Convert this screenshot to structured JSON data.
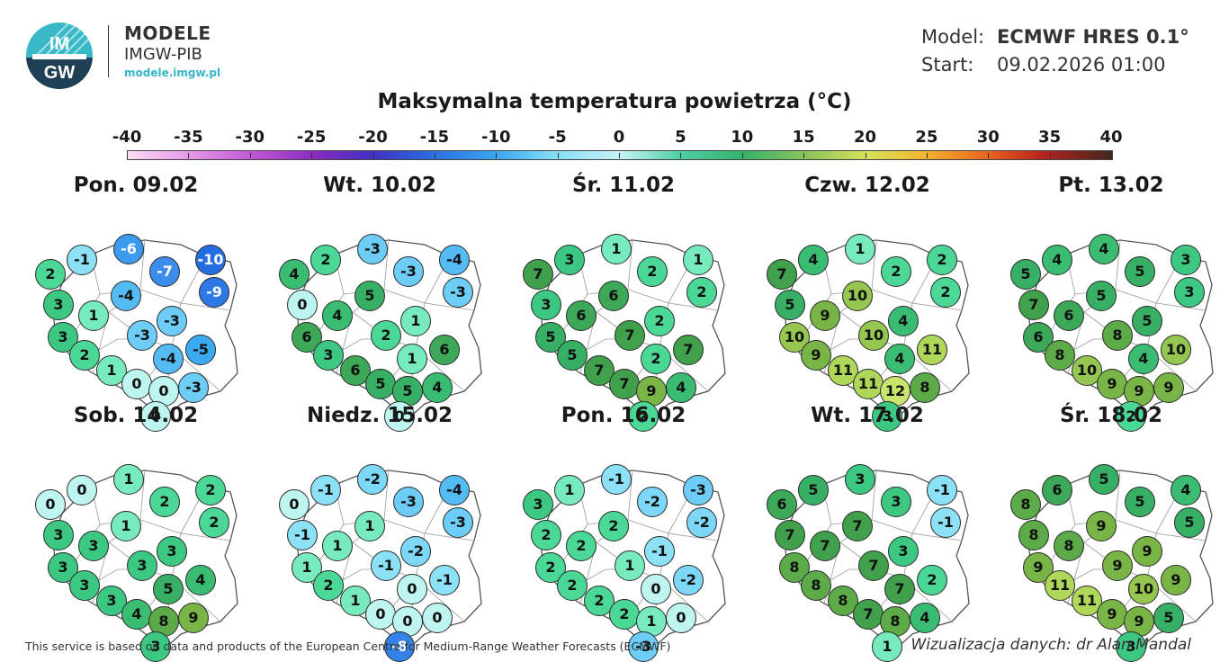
{
  "logo": {
    "mark_text": "IMGW",
    "line1": "MODELE",
    "line2": "IMGW-PIB",
    "url": "modele.imgw.pl"
  },
  "model": {
    "model_label": "Model:",
    "model_value": "ECMWF HRES 0.1°",
    "start_label": "Start:",
    "start_value": "09.02.2026 01:00"
  },
  "title": "Maksymalna temperatura powietrza (°C)",
  "scale": {
    "labels": [
      "-40",
      "-35",
      "-30",
      "-25",
      "-20",
      "-15",
      "-10",
      "-5",
      "0",
      "5",
      "10",
      "15",
      "20",
      "25",
      "30",
      "35",
      "40"
    ],
    "min": -40,
    "max": 40
  },
  "days": [
    {
      "title": "Pon. 09.02",
      "values": [
        -1,
        -6,
        -10,
        2,
        -7,
        -9,
        3,
        -4,
        1,
        -3,
        3,
        -3,
        -5,
        2,
        -4,
        1,
        0,
        0,
        -3,
        0
      ]
    },
    {
      "title": "Wt. 10.02",
      "values": [
        2,
        -3,
        -4,
        4,
        -3,
        -3,
        0,
        5,
        4,
        1,
        6,
        2,
        6,
        3,
        1,
        6,
        5,
        5,
        4,
        0
      ]
    },
    {
      "title": "Śr. 11.02",
      "values": [
        3,
        1,
        1,
        7,
        2,
        2,
        3,
        6,
        6,
        2,
        5,
        7,
        7,
        5,
        2,
        7,
        7,
        9,
        4,
        2
      ]
    },
    {
      "title": "Czw. 12.02",
      "values": [
        4,
        1,
        2,
        7,
        2,
        2,
        5,
        10,
        9,
        4,
        10,
        10,
        11,
        9,
        4,
        11,
        11,
        12,
        8,
        3
      ]
    },
    {
      "title": "Pt. 13.02",
      "values": [
        4,
        4,
        3,
        5,
        5,
        3,
        7,
        5,
        6,
        5,
        6,
        8,
        10,
        8,
        4,
        10,
        9,
        9,
        9,
        2
      ]
    },
    {
      "title": "Sob. 14.02",
      "values": [
        0,
        1,
        2,
        0,
        2,
        2,
        3,
        1,
        3,
        3,
        3,
        3,
        4,
        3,
        5,
        3,
        4,
        8,
        9,
        3
      ]
    },
    {
      "title": "Niedz. 15.02",
      "values": [
        -1,
        -2,
        -4,
        0,
        -3,
        -3,
        -1,
        1,
        1,
        -2,
        1,
        -1,
        -1,
        2,
        0,
        1,
        0,
        0,
        0,
        -8
      ]
    },
    {
      "title": "Pon. 16.02",
      "values": [
        1,
        -1,
        -3,
        3,
        -2,
        -2,
        2,
        2,
        2,
        -1,
        2,
        1,
        -2,
        2,
        0,
        2,
        2,
        1,
        0,
        -3
      ]
    },
    {
      "title": "Wt. 17.02",
      "values": [
        5,
        3,
        -1,
        6,
        3,
        -1,
        7,
        7,
        7,
        3,
        8,
        7,
        2,
        8,
        7,
        8,
        7,
        8,
        4,
        1
      ]
    },
    {
      "title": "Śr. 18.02",
      "values": [
        6,
        5,
        4,
        8,
        5,
        5,
        8,
        9,
        8,
        9,
        9,
        9,
        9,
        11,
        10,
        11,
        9,
        9,
        5,
        3
      ]
    }
  ],
  "footer": {
    "left": "This service is based on data and products of the European Centre for Medium-Range Weather Forecasts (ECMWF)",
    "right": "Wizualizacja danych: dr Alan Mandal"
  }
}
